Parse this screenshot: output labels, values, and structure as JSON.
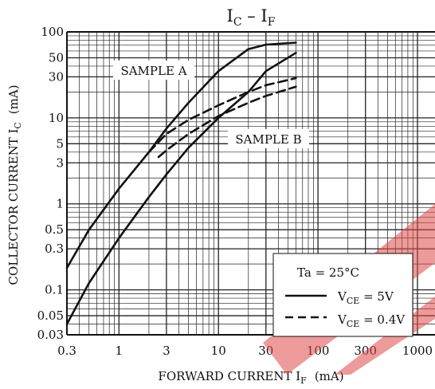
{
  "chart_data": {
    "type": "line",
    "title_main": "I",
    "title_sub1": "C",
    "title_sep": " – I",
    "title_sub2": "F",
    "xlabel_main": "FORWARD CURRENT  I",
    "xlabel_sub": "F",
    "xlabel_unit": "(mA)",
    "ylabel_main": "COLLECTOR CURRENT  I",
    "ylabel_sub": "C",
    "ylabel_unit": "(mA)",
    "x_scale": "log",
    "y_scale": "log",
    "xlim": [
      0.3,
      1500
    ],
    "ylim": [
      0.03,
      100
    ],
    "grid": true,
    "x_ticks": [
      "0.3",
      "1",
      "3",
      "10",
      "30",
      "100",
      "300",
      "1000"
    ],
    "x_tick_values": [
      0.3,
      1,
      3,
      10,
      30,
      100,
      300,
      1000
    ],
    "y_ticks": [
      "0.03",
      "0.05",
      "0.1",
      "0.3",
      "0.5",
      "1",
      "3",
      "5",
      "10",
      "30",
      "50",
      "100"
    ],
    "y_tick_values": [
      0.03,
      0.05,
      0.1,
      0.3,
      0.5,
      1,
      3,
      5,
      10,
      30,
      50,
      100
    ],
    "annotations": [
      "SAMPLE A",
      "SAMPLE B"
    ],
    "legend": {
      "placement": "bottom-right",
      "title": "Ta = 25°C",
      "items": [
        {
          "style": "solid",
          "main": "V",
          "sub": "CE",
          "rest": " = 5V"
        },
        {
          "style": "dashed",
          "main": "V",
          "sub": "CE",
          "rest": " = 0.4V"
        }
      ]
    },
    "series": [
      {
        "label": "SAMPLE A",
        "condition": "VCE = 5V",
        "style": "solid",
        "x": [
          0.3,
          0.5,
          1,
          2,
          3,
          5,
          10,
          20,
          30,
          60
        ],
        "y": [
          0.18,
          0.5,
          1.5,
          4,
          7.5,
          15,
          35,
          63,
          71,
          75
        ]
      },
      {
        "label": "SAMPLE A",
        "condition": "VCE = 0.4V",
        "style": "dashed",
        "x": [
          2,
          3,
          5,
          10,
          20,
          30,
          60
        ],
        "y": [
          4,
          6.5,
          9.5,
          14,
          20,
          24,
          29
        ]
      },
      {
        "label": "SAMPLE B",
        "condition": "VCE = 5V",
        "style": "solid",
        "x": [
          0.3,
          0.5,
          1,
          2,
          3,
          5,
          10,
          20,
          30,
          60
        ],
        "y": [
          0.04,
          0.12,
          0.4,
          1.2,
          2.2,
          4.5,
          10,
          20,
          35,
          57
        ]
      },
      {
        "label": "SAMPLE B",
        "condition": "VCE = 0.4V",
        "style": "dashed",
        "x": [
          2.5,
          3,
          5,
          10,
          20,
          30,
          60
        ],
        "y": [
          3.5,
          4.2,
          6.5,
          10.5,
          15,
          18,
          23
        ]
      }
    ]
  }
}
